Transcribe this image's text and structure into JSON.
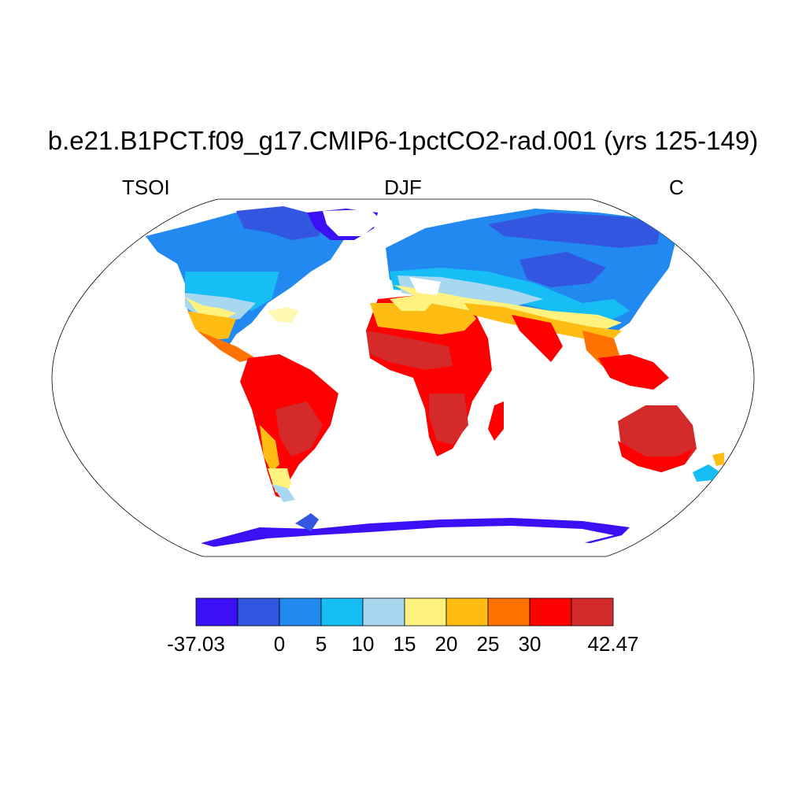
{
  "title": "b.e21.B1PCT.f09_g17.CMIP6-1pctCO2-rad.001 (yrs 125-149)",
  "subtitle_left": "TSOI",
  "subtitle_center": "DJF",
  "subtitle_right": "C",
  "colorbar": {
    "colors": [
      "#3b10f5",
      "#3256e0",
      "#2189f0",
      "#17bdf5",
      "#a8d8f0",
      "#fff27e",
      "#ffbd14",
      "#ff7200",
      "#ff0000",
      "#d42a2a"
    ],
    "tick_labels": [
      "-37.03",
      "0",
      "5",
      "10",
      "15",
      "20",
      "25",
      "30",
      "42.47"
    ]
  },
  "chart_data": {
    "type": "heatmap",
    "title": "b.e21.B1PCT.f09_g17.CMIP6-1pctCO2-rad.001 (yrs 125-149)",
    "variable": "TSOI",
    "season": "DJF",
    "units": "C",
    "projection": "Robinson",
    "color_levels": [
      -37.03,
      0,
      5,
      10,
      15,
      20,
      25,
      30,
      42.47
    ]
  }
}
